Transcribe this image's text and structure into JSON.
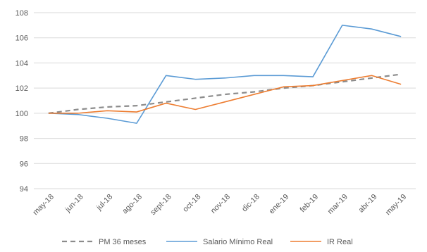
{
  "chart_data": {
    "type": "line",
    "title": "",
    "xlabel": "",
    "ylabel": "",
    "categories": [
      "may-18",
      "jun-18",
      "jul-18",
      "ago-18",
      "sept-18",
      "oct-18",
      "nov-18",
      "dic-18",
      "ene-19",
      "feb-19",
      "mar-19",
      "abr-19",
      "may-19"
    ],
    "ylim": [
      94,
      108
    ],
    "yticks": [
      94,
      96,
      98,
      100,
      102,
      104,
      106,
      108
    ],
    "grid": true,
    "legend_placement": "bottom",
    "series": [
      {
        "name": "PM 36 meses",
        "color": "#8c8c8c",
        "dash": true,
        "values": [
          100.0,
          100.3,
          100.5,
          100.6,
          100.9,
          101.2,
          101.5,
          101.7,
          102.0,
          102.2,
          102.5,
          102.8,
          103.1
        ]
      },
      {
        "name": "Salario Mínimo Real",
        "color": "#5b9bd5",
        "dash": false,
        "values": [
          100.0,
          99.9,
          99.6,
          99.2,
          103.0,
          102.7,
          102.8,
          103.0,
          103.0,
          102.9,
          107.0,
          106.7,
          106.1
        ]
      },
      {
        "name": "IR Real",
        "color": "#ed7d31",
        "dash": false,
        "values": [
          100.0,
          100.0,
          100.2,
          100.1,
          100.8,
          100.3,
          100.9,
          101.5,
          102.1,
          102.2,
          102.6,
          103.0,
          102.3
        ]
      }
    ]
  }
}
